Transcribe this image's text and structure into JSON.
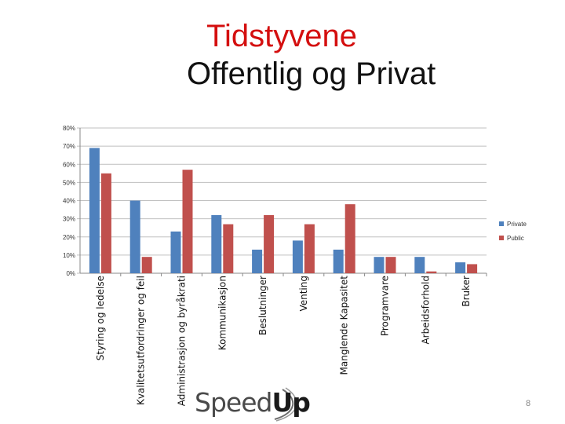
{
  "slide": {
    "title_line1": "Tidstyvene",
    "title_line2": "Offentlig og Privat",
    "logo_speed": "Speed",
    "logo_up": "Up",
    "page_number": "8"
  },
  "colors": {
    "title_accent": "#d40f0f",
    "private": "#4f81bd",
    "public": "#c0504d",
    "grid": "#bfbfbf"
  },
  "chart_data": {
    "type": "bar",
    "categories": [
      "Styring og ledelse",
      "Kvalitetsutfordringer og feil",
      "Administrasjon og byråkrati",
      "Kommunikasjon",
      "Beslutninger",
      "Venting",
      "Manglende Kapasitet",
      "Programvare",
      "Arbeidsforhold",
      "Bruker"
    ],
    "series": [
      {
        "name": "Private",
        "values": [
          69,
          40,
          23,
          32,
          13,
          18,
          13,
          9,
          9,
          6
        ]
      },
      {
        "name": "Public",
        "values": [
          55,
          9,
          57,
          27,
          32,
          27,
          38,
          9,
          1,
          5
        ]
      }
    ],
    "y_ticks": [
      "0%",
      "10%",
      "20%",
      "30%",
      "40%",
      "50%",
      "60%",
      "70%",
      "80%"
    ],
    "ylim": [
      0,
      80
    ],
    "y_unit": "%",
    "grid": true,
    "legend_position": "right"
  }
}
